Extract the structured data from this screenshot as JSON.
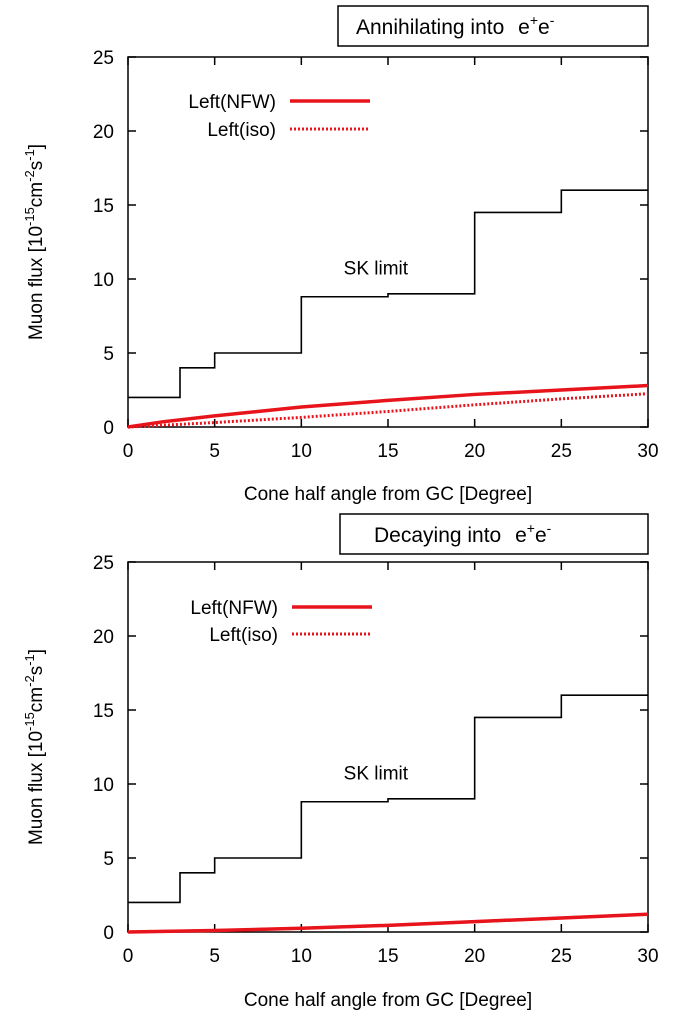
{
  "chart_data": [
    {
      "type": "line",
      "title_box": {
        "text": "Annihilating into",
        "formula_base": "e",
        "formula_sup1": "+",
        "formula_base2": "e",
        "formula_sup2": "-"
      },
      "xlabel": "Cone half angle from GC [Degree]",
      "ylabel": {
        "main": "Muon flux [10",
        "exp1": "-15",
        "mid": "cm",
        "exp2": "-2",
        "mid2": "s",
        "exp3": "-1",
        "end": "]"
      },
      "xlim": [
        0,
        30
      ],
      "ylim": [
        0,
        25
      ],
      "xticks": [
        "0",
        "5",
        "10",
        "15",
        "20",
        "25",
        "30"
      ],
      "yticks": [
        "0",
        "5",
        "10",
        "15",
        "20",
        "25"
      ],
      "grid": false,
      "legend_position": "top-left",
      "annotation": {
        "text": "SK limit",
        "x": 14.3,
        "y": 10.3
      },
      "series": [
        {
          "name": "Left(NFW)",
          "style": "solid",
          "color": "#e8141c",
          "x": [
            0,
            2,
            5,
            10,
            15,
            20,
            25,
            30
          ],
          "y": [
            0,
            0.35,
            0.75,
            1.35,
            1.8,
            2.2,
            2.5,
            2.8
          ]
        },
        {
          "name": "Left(iso)",
          "style": "dotted",
          "color": "#e8141c",
          "x": [
            0,
            5,
            10,
            15,
            20,
            25,
            30
          ],
          "y": [
            0,
            0.3,
            0.65,
            1.05,
            1.5,
            1.9,
            2.25
          ]
        },
        {
          "name": "",
          "style": "step",
          "color": "#000000",
          "x": [
            0,
            3,
            3,
            5,
            5,
            10,
            10,
            15,
            15,
            20,
            20,
            25,
            25,
            30
          ],
          "y": [
            2,
            2,
            4,
            4,
            5,
            5,
            8.8,
            8.8,
            9,
            9,
            14.5,
            14.5,
            16,
            16
          ]
        }
      ]
    },
    {
      "type": "line",
      "title_box": {
        "text": "Decaying into",
        "formula_base": "e",
        "formula_sup1": "+",
        "formula_base2": "e",
        "formula_sup2": "-"
      },
      "xlabel": "Cone half angle from GC [Degree]",
      "ylabel": {
        "main": "Muon flux [10",
        "exp1": "-15",
        "mid": "cm",
        "exp2": "-2",
        "mid2": "s",
        "exp3": "-1",
        "end": "]"
      },
      "xlim": [
        0,
        30
      ],
      "ylim": [
        0,
        25
      ],
      "xticks": [
        "0",
        "5",
        "10",
        "15",
        "20",
        "25",
        "30"
      ],
      "yticks": [
        "0",
        "5",
        "10",
        "15",
        "20",
        "25"
      ],
      "grid": false,
      "legend_position": "top-left",
      "annotation": {
        "text": "SK limit",
        "x": 14.3,
        "y": 10.3
      },
      "series": [
        {
          "name": "Left(NFW)",
          "style": "solid",
          "color": "#e8141c",
          "x": [
            0,
            5,
            10,
            15,
            20,
            25,
            30
          ],
          "y": [
            0,
            0.1,
            0.25,
            0.45,
            0.7,
            0.95,
            1.2
          ]
        },
        {
          "name": "Left(iso)",
          "style": "dotted",
          "color": "#e8141c",
          "x": [
            0,
            5,
            10,
            15,
            20,
            25,
            30
          ],
          "y": [
            0,
            0.1,
            0.25,
            0.45,
            0.7,
            0.95,
            1.2
          ]
        },
        {
          "name": "",
          "style": "step",
          "color": "#000000",
          "x": [
            0,
            3,
            3,
            5,
            5,
            10,
            10,
            15,
            15,
            20,
            20,
            25,
            25,
            30
          ],
          "y": [
            2,
            2,
            4,
            4,
            5,
            5,
            8.8,
            8.8,
            9,
            9,
            14.5,
            14.5,
            16,
            16
          ]
        }
      ]
    }
  ]
}
